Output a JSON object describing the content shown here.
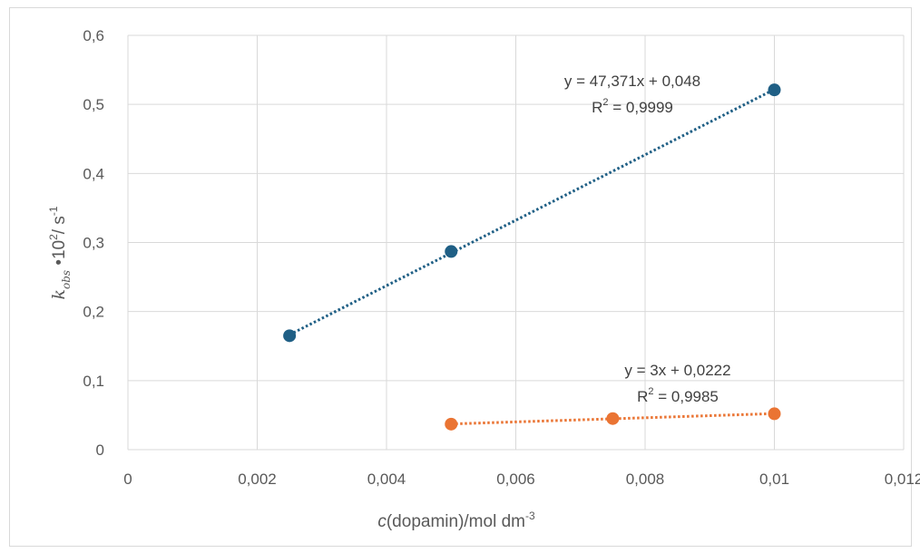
{
  "chart_data": {
    "type": "scatter",
    "xlim": [
      0,
      0.012
    ],
    "ylim": [
      0,
      0.6
    ],
    "x_ticks": [
      {
        "value": 0,
        "label": "0"
      },
      {
        "value": 0.002,
        "label": "0,002"
      },
      {
        "value": 0.004,
        "label": "0,004"
      },
      {
        "value": 0.006,
        "label": "0,006"
      },
      {
        "value": 0.008,
        "label": "0,008"
      },
      {
        "value": 0.01,
        "label": "0,01"
      },
      {
        "value": 0.012,
        "label": "0,012"
      }
    ],
    "y_ticks": [
      {
        "value": 0,
        "label": "0"
      },
      {
        "value": 0.1,
        "label": "0,1"
      },
      {
        "value": 0.2,
        "label": "0,2"
      },
      {
        "value": 0.3,
        "label": "0,3"
      },
      {
        "value": 0.4,
        "label": "0,4"
      },
      {
        "value": 0.5,
        "label": "0,5"
      },
      {
        "value": 0.6,
        "label": "0,6"
      }
    ],
    "grid": true,
    "legend": "none",
    "xlabel": {
      "italic": "c",
      "main": "(dopamin)/mol dm",
      "sup": "-3"
    },
    "ylabel": {
      "k": "k",
      "sub": "obs",
      "main": " •10",
      "sup1": "2",
      "unit": "/ s",
      "sup2": "-1"
    },
    "series": [
      {
        "color": "#1f5f85",
        "x": [
          0.0025,
          0.005,
          0.01
        ],
        "y": [
          0.165,
          0.287,
          0.521
        ],
        "trendline": {
          "slope": 47.371,
          "intercept": 0.048,
          "from": 0.0025,
          "to": 0.01,
          "style": "dotted"
        },
        "equation": "y = 47,371x + 0,048",
        "r2_label": "R",
        "r2_sup": "2",
        "r2_value": " = 0,9999"
      },
      {
        "color": "#ea7433",
        "x": [
          0.005,
          0.0075,
          0.01
        ],
        "y": [
          0.037,
          0.045,
          0.052
        ],
        "trendline": {
          "slope": 3,
          "intercept": 0.0222,
          "from": 0.005,
          "to": 0.01,
          "style": "dotted"
        },
        "equation": "y = 3x + 0,0222",
        "r2_label": "R",
        "r2_sup": "2",
        "r2_value": " = 0,9985"
      }
    ]
  }
}
